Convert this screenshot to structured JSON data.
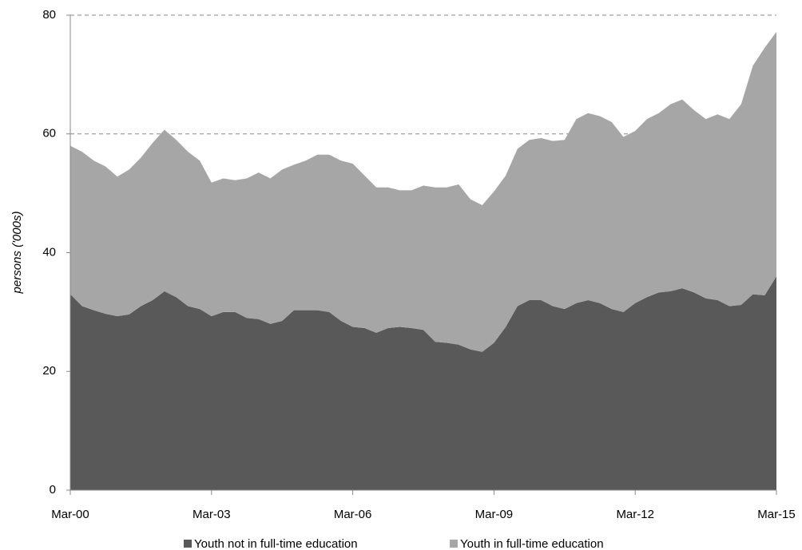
{
  "chart_data": {
    "type": "stacked-area",
    "y_label": "persons ('000s)",
    "categories": [
      "Mar-00",
      null,
      null,
      null,
      null,
      null,
      null,
      null,
      null,
      null,
      null,
      null,
      "Mar-03",
      null,
      null,
      null,
      null,
      null,
      null,
      null,
      null,
      null,
      null,
      null,
      "Mar-06",
      null,
      null,
      null,
      null,
      null,
      null,
      null,
      null,
      null,
      null,
      null,
      "Mar-09",
      null,
      null,
      null,
      null,
      null,
      null,
      null,
      null,
      null,
      null,
      null,
      "Mar-12",
      null,
      null,
      null,
      null,
      null,
      null,
      null,
      null,
      null,
      null,
      null,
      "Mar-15"
    ],
    "series": [
      {
        "name": "Youth not in full-time education",
        "color": "#595959",
        "values": [
          33,
          31,
          30.3,
          29.7,
          29.3,
          29.6,
          31,
          32,
          33.5,
          32.5,
          31,
          30.5,
          29.3,
          30,
          30,
          29,
          28.8,
          28,
          28.5,
          30.3,
          30.3,
          30.3,
          30,
          28.5,
          27.5,
          27.3,
          26.5,
          27.3,
          27.5,
          27.3,
          27,
          25,
          24.8,
          24.5,
          23.7,
          23.3,
          24.8,
          27.5,
          31,
          32,
          32,
          31,
          30.5,
          31.5,
          32,
          31.5,
          30.5,
          30,
          31.5,
          32.5,
          33.3,
          33.5,
          34,
          33.3,
          32.3,
          32,
          31,
          31.2,
          33,
          32.8,
          36
        ]
      },
      {
        "name": "Youth in full-time education",
        "color": "#a6a6a6",
        "values": [
          25,
          26,
          25.2,
          24.8,
          23.5,
          24.4,
          25,
          26.5,
          27.2,
          26.5,
          26,
          25,
          22.5,
          22.5,
          22.2,
          23.5,
          24.7,
          24.5,
          25.5,
          24.5,
          25.2,
          26.2,
          26.5,
          27,
          27.5,
          25.7,
          24.5,
          23.7,
          23,
          23.2,
          24.3,
          26,
          26.2,
          27,
          25.3,
          24.7,
          25.5,
          25.5,
          26.5,
          27,
          27.3,
          27.8,
          28.5,
          31,
          31.5,
          31.5,
          31.5,
          29.5,
          29,
          30,
          30.2,
          31.5,
          31.8,
          30.7,
          30.2,
          31.3,
          31.5,
          33.8,
          38.5,
          41.7,
          41.2
        ]
      }
    ],
    "ylim": [
      0,
      80
    ],
    "yticks": [
      0,
      20,
      40,
      60,
      80
    ],
    "grid": true
  }
}
